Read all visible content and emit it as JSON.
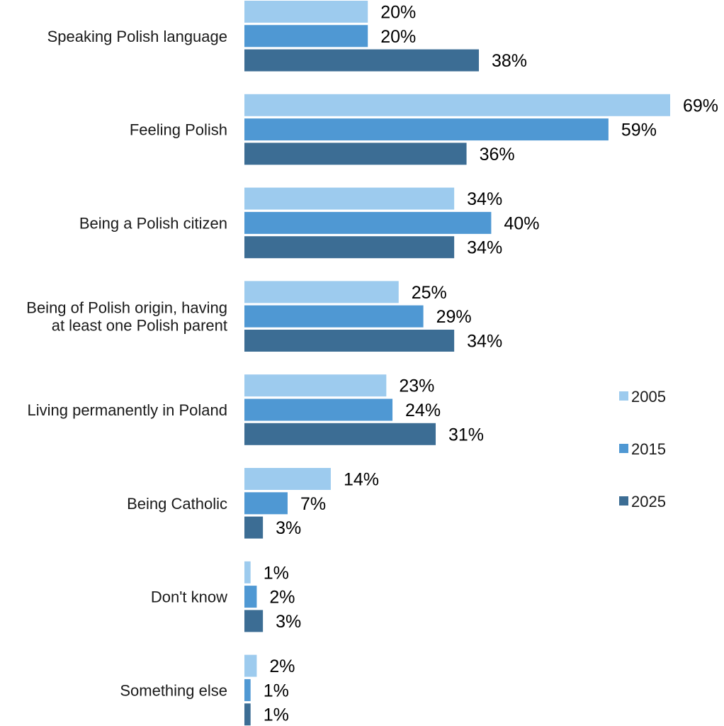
{
  "chart_data": {
    "type": "bar",
    "orientation": "horizontal",
    "categories": [
      [
        "Speaking Polish language"
      ],
      [
        "Feeling Polish"
      ],
      [
        "Being a Polish citizen"
      ],
      [
        "Being of Polish origin, having",
        "at least one Polish parent"
      ],
      [
        "Living permanently in Poland"
      ],
      [
        "Being Catholic"
      ],
      [
        "Don't know"
      ],
      [
        "Something else"
      ]
    ],
    "series": [
      {
        "name": "2005",
        "color": "#9dcbee",
        "values": [
          20,
          69,
          34,
          25,
          23,
          14,
          1,
          2
        ]
      },
      {
        "name": "2015",
        "color": "#4f98d3",
        "values": [
          20,
          59,
          40,
          29,
          24,
          7,
          2,
          1
        ]
      },
      {
        "name": "2025",
        "color": "#3c6d94",
        "values": [
          38,
          36,
          34,
          34,
          31,
          3,
          3,
          1
        ]
      }
    ],
    "value_suffix": "%",
    "xlim": [
      0,
      69
    ],
    "grid": false,
    "legend_position": "right"
  }
}
